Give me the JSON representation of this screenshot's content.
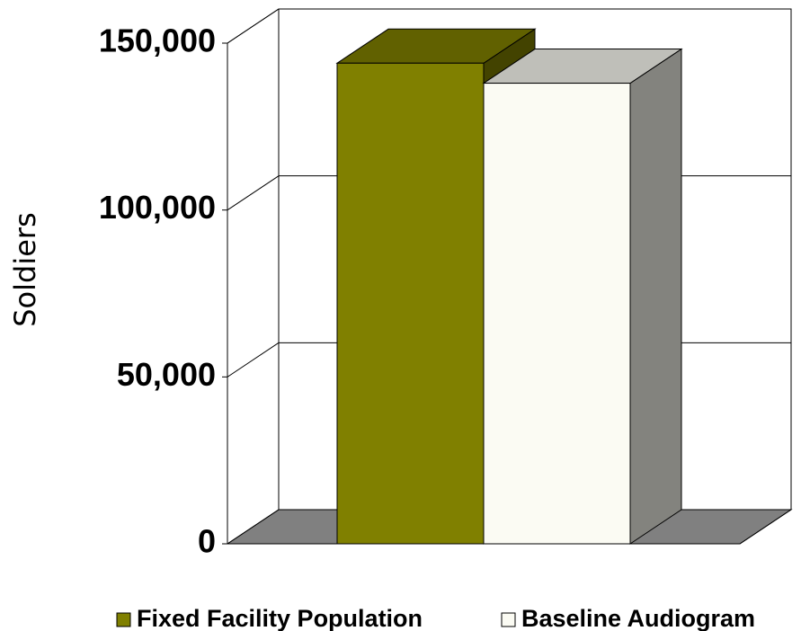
{
  "chart_data": {
    "type": "bar",
    "y_label": "Soldiers",
    "series": [
      {
        "name": "Fixed Facility Population",
        "color": "#808000",
        "values": [
          144000
        ]
      },
      {
        "name": "Baseline Audiogram",
        "color": "#fbfbf3",
        "values": [
          138000
        ]
      }
    ],
    "ylim": [
      0,
      150000
    ],
    "yticks": [
      {
        "value": 0,
        "label": "0"
      },
      {
        "value": 50000,
        "label": "50,000"
      },
      {
        "value": 100000,
        "label": "100,000"
      },
      {
        "value": 150000,
        "label": "150,000"
      }
    ],
    "grid": true
  }
}
